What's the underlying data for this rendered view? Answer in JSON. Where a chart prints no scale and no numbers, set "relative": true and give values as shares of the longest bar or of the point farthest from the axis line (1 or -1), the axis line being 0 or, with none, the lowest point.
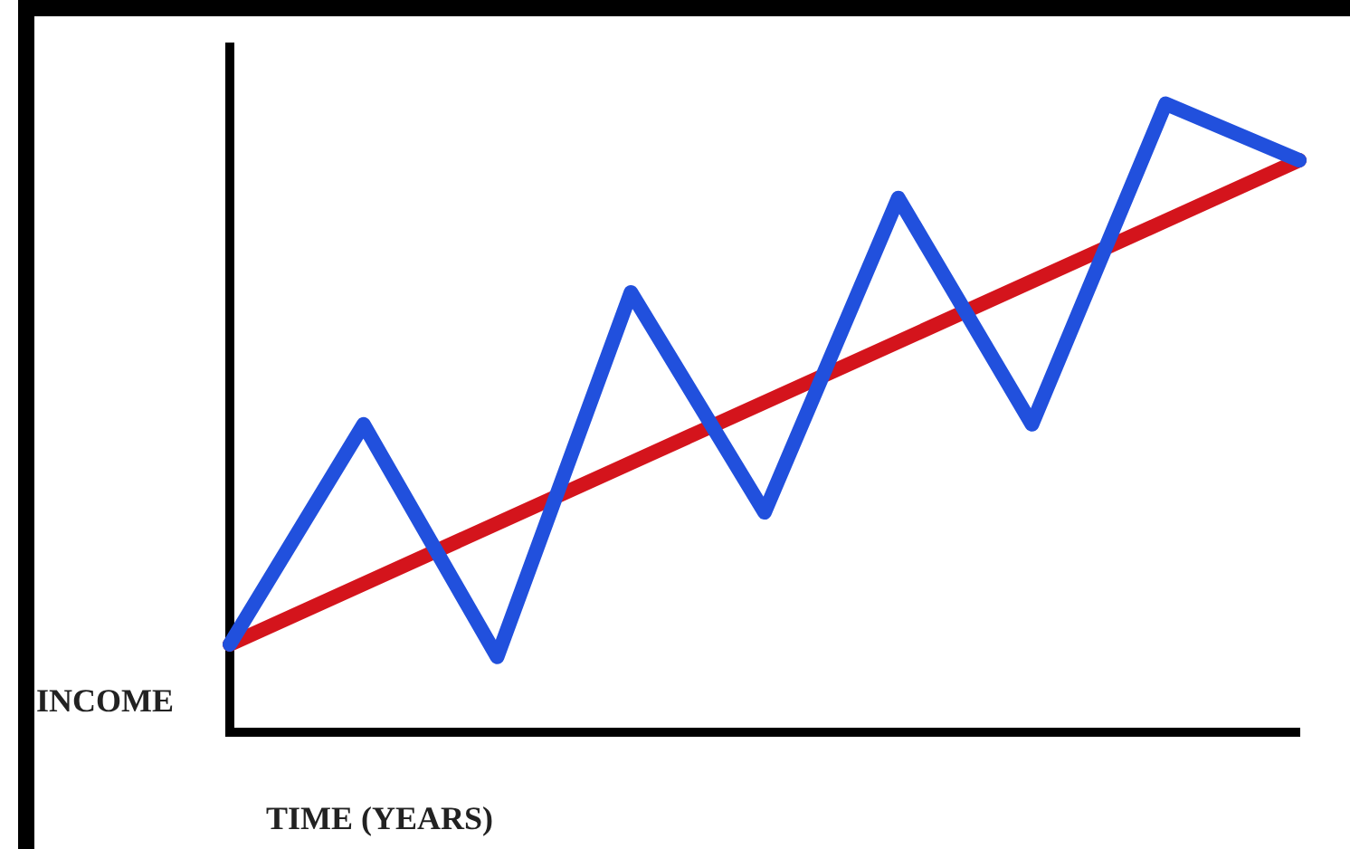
{
  "chart_data": {
    "type": "line",
    "relative": true,
    "xlabel": "TIME (YEARS)",
    "ylabel": "INCOME",
    "categories": [
      null,
      null,
      null,
      null,
      null,
      null,
      null,
      null,
      null
    ],
    "marker": "none",
    "grid": false,
    "legend": false,
    "series": [
      {
        "color": "#2150dd",
        "values": [
          0.14,
          0.49,
          0.12,
          0.7,
          0.35,
          0.85,
          0.49,
          1,
          0.91
        ]
      },
      {
        "color": "#d4141c",
        "values": [
          0.14,
          null,
          null,
          null,
          null,
          null,
          null,
          null,
          0.91
        ]
      }
    ]
  }
}
